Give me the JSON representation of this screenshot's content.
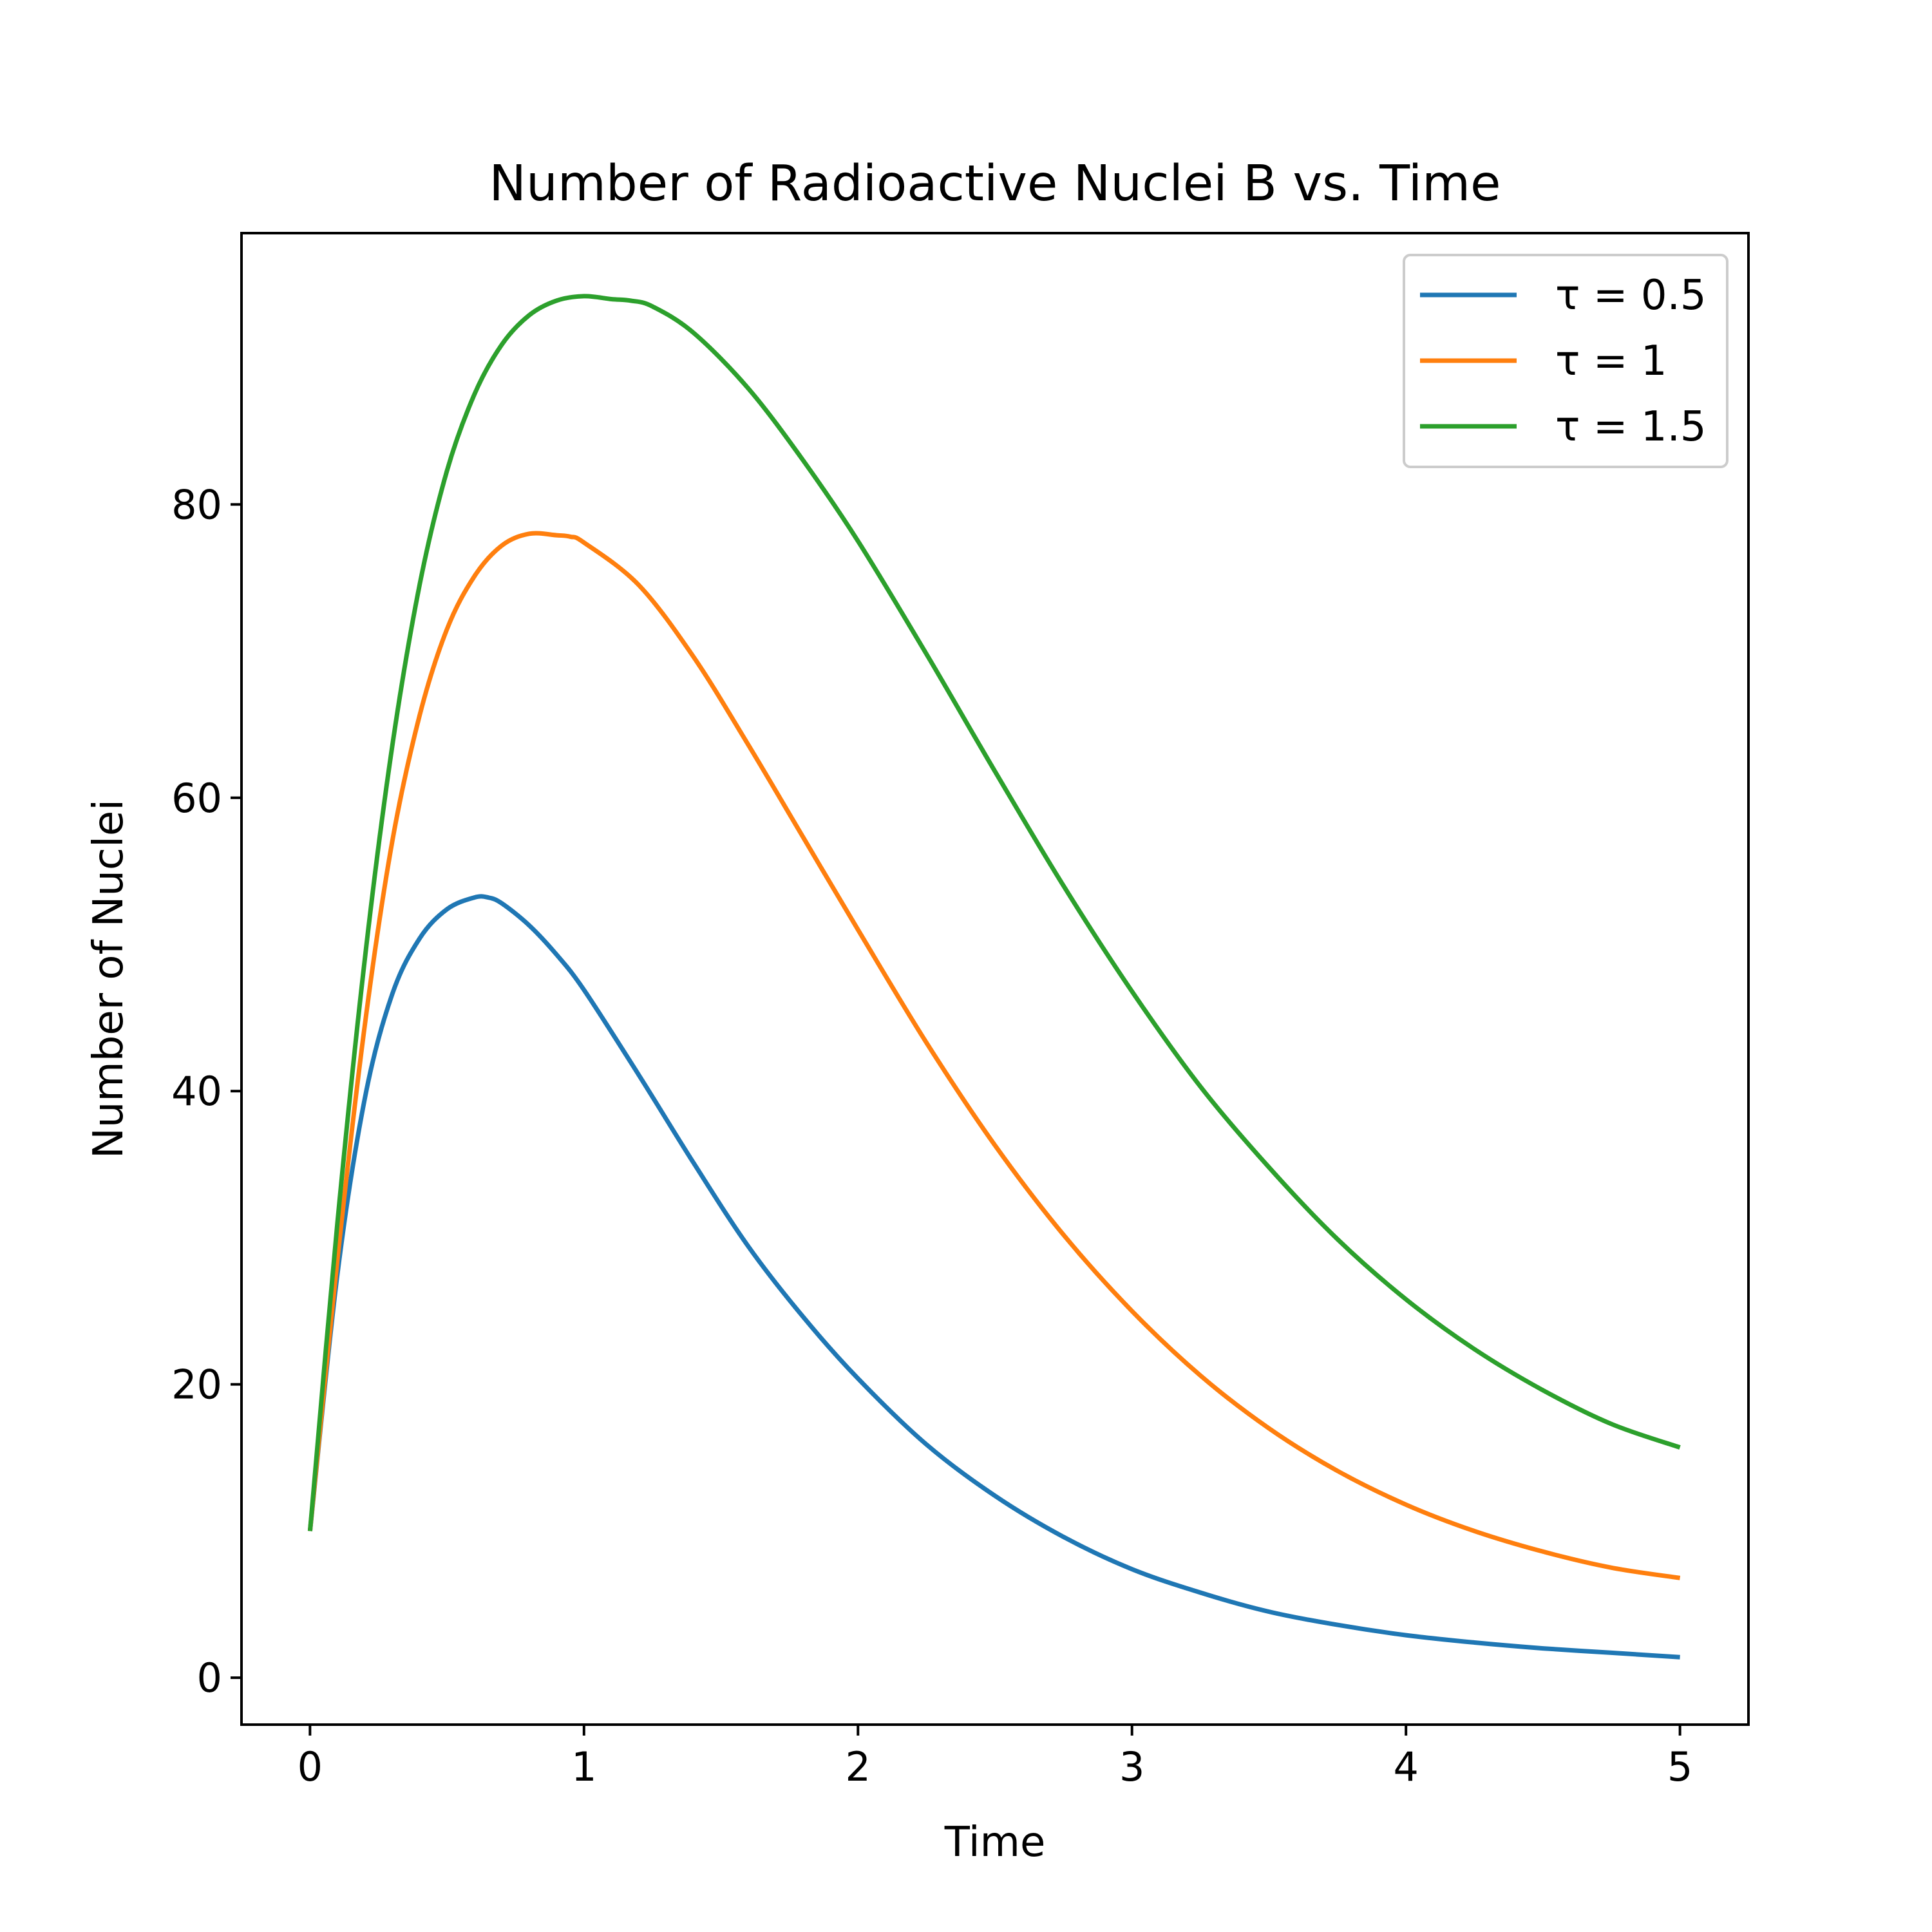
{
  "chart_data": {
    "type": "line",
    "title": "Number of Radioactive Nuclei B vs. Time",
    "xlabel": "Time",
    "ylabel": "Number of Nuclei",
    "xlim": [
      -0.25,
      5.25
    ],
    "ylim": [
      -3.2,
      98.5
    ],
    "xticks": [
      0,
      1,
      2,
      3,
      4,
      5
    ],
    "yticks": [
      0,
      20,
      40,
      60,
      80
    ],
    "grid": false,
    "legend_position": "top-right",
    "series": [
      {
        "name": "τ = 0.5",
        "color": "#1f77b4",
        "x": [
          0,
          0.1,
          0.2,
          0.3,
          0.4,
          0.5,
          0.6,
          0.65,
          0.7,
          0.8,
          0.9,
          1.0,
          1.2,
          1.4,
          1.6,
          1.8,
          2.0,
          2.25,
          2.5,
          2.75,
          3.0,
          3.25,
          3.5,
          3.75,
          4.0,
          4.25,
          4.5,
          4.75,
          5.0
        ],
        "y": [
          10,
          27.5,
          39.5,
          46.6,
          50.4,
          52.4,
          53.2,
          53.2,
          52.8,
          51.3,
          49.3,
          46.9,
          41.1,
          35.1,
          29.4,
          24.6,
          20.4,
          15.9,
          12.4,
          9.6,
          7.4,
          5.8,
          4.5,
          3.6,
          2.9,
          2.4,
          2.0,
          1.7,
          1.4
        ]
      },
      {
        "name": "τ = 1",
        "color": "#ff7f0e",
        "x": [
          0,
          0.1,
          0.2,
          0.3,
          0.4,
          0.5,
          0.6,
          0.7,
          0.8,
          0.9,
          0.95,
          1.0,
          1.2,
          1.4,
          1.6,
          1.8,
          2.0,
          2.25,
          2.5,
          2.75,
          3.0,
          3.25,
          3.5,
          3.75,
          4.0,
          4.25,
          4.5,
          4.75,
          5.0
        ],
        "y": [
          10,
          28.5,
          44.5,
          57.0,
          65.6,
          71.5,
          75.1,
          77.2,
          78.0,
          77.9,
          77.8,
          77.4,
          74.5,
          69.6,
          63.6,
          57.3,
          51.0,
          43.3,
          36.3,
          30.2,
          25.0,
          20.6,
          17.0,
          14.1,
          11.8,
          10.0,
          8.6,
          7.5,
          6.8
        ]
      },
      {
        "name": "τ = 1.5",
        "color": "#2ca02c",
        "x": [
          0,
          0.1,
          0.2,
          0.3,
          0.4,
          0.5,
          0.6,
          0.7,
          0.8,
          0.9,
          1.0,
          1.1,
          1.17,
          1.25,
          1.4,
          1.6,
          1.8,
          2.0,
          2.25,
          2.5,
          2.75,
          3.0,
          3.25,
          3.5,
          3.75,
          4.0,
          4.25,
          4.5,
          4.75,
          5.0
        ],
        "y": [
          10,
          31.0,
          49.0,
          63.5,
          74.5,
          82.3,
          87.5,
          90.9,
          92.9,
          93.9,
          94.2,
          94.0,
          93.9,
          93.5,
          91.7,
          87.9,
          83.0,
          77.5,
          69.8,
          61.8,
          54.0,
          46.8,
          40.3,
          34.8,
          29.9,
          25.8,
          22.4,
          19.6,
          17.3,
          15.7
        ]
      }
    ]
  }
}
